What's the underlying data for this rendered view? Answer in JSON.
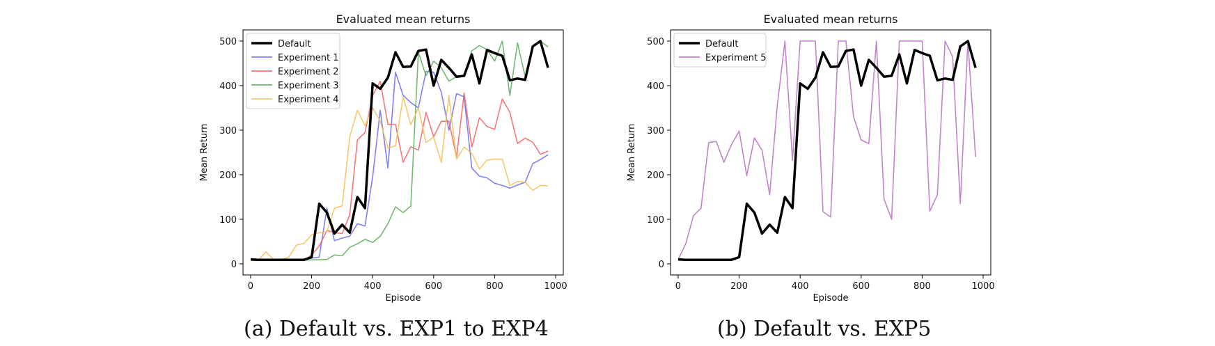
{
  "chart_data": [
    {
      "type": "line",
      "title": "Evaluated mean returns",
      "xlabel": "Episode",
      "ylabel": "Mean Return",
      "xlim": [
        -25,
        1025
      ],
      "ylim": [
        -25,
        525
      ],
      "xticks": [
        0,
        200,
        400,
        600,
        800,
        1000
      ],
      "yticks": [
        0,
        100,
        200,
        300,
        400,
        500
      ],
      "legend_loc": "top-left",
      "caption": "(a) Default vs. EXP1 to EXP4",
      "x": [
        0,
        25,
        50,
        75,
        100,
        125,
        150,
        175,
        200,
        225,
        250,
        275,
        300,
        325,
        350,
        375,
        400,
        425,
        450,
        475,
        500,
        525,
        550,
        575,
        600,
        625,
        650,
        675,
        700,
        725,
        750,
        775,
        800,
        825,
        850,
        875,
        900,
        925,
        950,
        975
      ],
      "series": [
        {
          "name": "Default",
          "color": "#000000",
          "width": 3.5,
          "values": [
            10,
            9,
            9,
            9,
            9,
            9,
            9,
            9,
            15,
            135,
            115,
            68,
            88,
            70,
            150,
            125,
            405,
            393,
            418,
            475,
            442,
            443,
            478,
            481,
            400,
            458,
            440,
            420,
            422,
            470,
            405,
            480,
            473,
            467,
            412,
            416,
            413,
            488,
            500,
            440
          ]
        },
        {
          "name": "Experiment 1",
          "color": "#6b6bf0",
          "width": 1.6,
          "values": [
            12,
            10,
            10,
            9,
            9,
            9,
            9,
            10,
            13,
            15,
            125,
            52,
            58,
            62,
            90,
            85,
            195,
            345,
            215,
            430,
            378,
            362,
            350,
            432,
            430,
            385,
            300,
            382,
            375,
            215,
            197,
            193,
            181,
            176,
            170,
            177,
            183,
            225,
            234,
            245
          ]
        },
        {
          "name": "Experiment 2",
          "color": "#f26060",
          "width": 1.6,
          "values": [
            8,
            8,
            8,
            8,
            8,
            8,
            8,
            8,
            20,
            40,
            75,
            70,
            68,
            110,
            278,
            295,
            378,
            410,
            313,
            313,
            228,
            263,
            255,
            340,
            285,
            320,
            320,
            240,
            383,
            262,
            328,
            308,
            302,
            370,
            340,
            270,
            282,
            273,
            246,
            253
          ]
        },
        {
          "name": "Experiment 3",
          "color": "#5aad5a",
          "width": 1.6,
          "values": [
            8,
            8,
            8,
            8,
            8,
            8,
            8,
            8,
            9,
            9,
            10,
            20,
            18,
            37,
            45,
            55,
            48,
            62,
            90,
            128,
            115,
            130,
            475,
            422,
            455,
            440,
            410,
            420,
            423,
            478,
            490,
            481,
            455,
            500,
            378,
            496,
            420,
            490,
            500,
            487
          ]
        },
        {
          "name": "Experiment 4",
          "color": "#f5be55",
          "width": 1.6,
          "values": [
            8,
            8,
            27,
            10,
            10,
            15,
            42,
            46,
            65,
            70,
            72,
            125,
            130,
            285,
            345,
            310,
            350,
            320,
            260,
            265,
            375,
            312,
            350,
            272,
            285,
            228,
            378,
            235,
            262,
            248,
            213,
            233,
            235,
            235,
            176,
            185,
            183,
            165,
            176,
            175
          ]
        }
      ]
    },
    {
      "type": "line",
      "title": "Evaluated mean returns",
      "xlabel": "Episode",
      "ylabel": "Mean Return",
      "xlim": [
        -25,
        1025
      ],
      "ylim": [
        -25,
        525
      ],
      "xticks": [
        0,
        200,
        400,
        600,
        800,
        1000
      ],
      "yticks": [
        0,
        100,
        200,
        300,
        400,
        500
      ],
      "legend_loc": "top-left",
      "caption": "(b) Default vs. EXP5",
      "x": [
        0,
        25,
        50,
        75,
        100,
        125,
        150,
        175,
        200,
        225,
        250,
        275,
        300,
        325,
        350,
        375,
        400,
        425,
        450,
        475,
        500,
        525,
        550,
        575,
        600,
        625,
        650,
        675,
        700,
        725,
        750,
        775,
        800,
        825,
        850,
        875,
        900,
        925,
        950,
        975
      ],
      "series": [
        {
          "name": "Default",
          "color": "#000000",
          "width": 3.5,
          "values": [
            10,
            9,
            9,
            9,
            9,
            9,
            9,
            9,
            15,
            135,
            115,
            68,
            88,
            70,
            150,
            125,
            405,
            393,
            418,
            475,
            442,
            443,
            478,
            481,
            400,
            458,
            440,
            420,
            422,
            470,
            405,
            480,
            473,
            467,
            412,
            416,
            413,
            488,
            500,
            440
          ]
        },
        {
          "name": "Experiment 5",
          "color": "#b86cc4",
          "width": 1.6,
          "values": [
            10,
            45,
            108,
            125,
            272,
            275,
            228,
            268,
            298,
            198,
            283,
            255,
            155,
            355,
            500,
            232,
            500,
            500,
            500,
            117,
            105,
            500,
            500,
            330,
            278,
            270,
            500,
            145,
            100,
            500,
            500,
            500,
            500,
            118,
            155,
            500,
            465,
            135,
            500,
            240
          ]
        }
      ]
    }
  ]
}
